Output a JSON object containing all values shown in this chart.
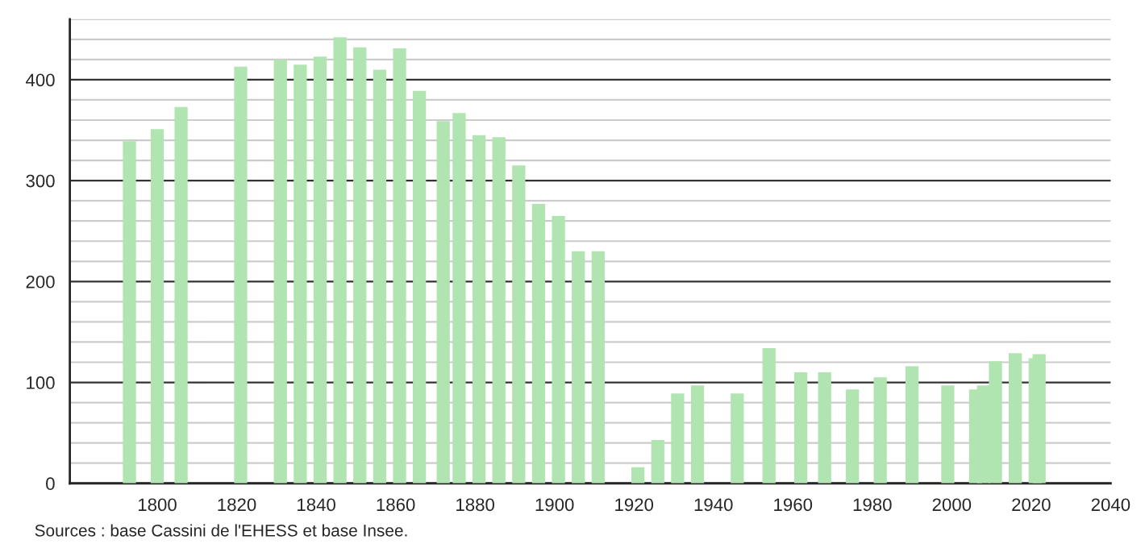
{
  "chart_data": {
    "type": "bar",
    "x": [
      1793,
      1800,
      1806,
      1821,
      1831,
      1836,
      1841,
      1846,
      1851,
      1856,
      1861,
      1866,
      1872,
      1876,
      1881,
      1886,
      1891,
      1896,
      1901,
      1906,
      1911,
      1921,
      1926,
      1931,
      1936,
      1946,
      1954,
      1962,
      1968,
      1975,
      1982,
      1990,
      1999,
      2006,
      2008,
      2011,
      2016,
      2021,
      2022
    ],
    "values": [
      339,
      351,
      373,
      413,
      420,
      415,
      423,
      442,
      432,
      410,
      431,
      389,
      359,
      367,
      345,
      343,
      315,
      277,
      265,
      230,
      230,
      16,
      43,
      89,
      97,
      89,
      134,
      110,
      110,
      93,
      105,
      116,
      97,
      93,
      97,
      121,
      129,
      124,
      128
    ],
    "color": "#b0e4b0",
    "xlim": [
      1778,
      2040
    ],
    "xticks": [
      1800,
      1820,
      1840,
      1860,
      1880,
      1900,
      1920,
      1940,
      1960,
      1980,
      2000,
      2020,
      2040
    ],
    "ylim": [
      0,
      460
    ],
    "yticks": [
      0,
      {
        "value": 20,
        "label": null
      },
      {
        "value": 40,
        "label": null
      },
      {
        "value": 60,
        "label": null
      },
      {
        "value": 80,
        "label": null
      },
      100,
      {
        "value": 120,
        "label": null
      },
      {
        "value": 140,
        "label": null
      },
      {
        "value": 160,
        "label": null
      },
      {
        "value": 180,
        "label": null
      },
      200,
      {
        "value": 220,
        "label": null
      },
      {
        "value": 240,
        "label": null
      },
      {
        "value": 260,
        "label": null
      },
      {
        "value": 280,
        "label": null
      },
      300,
      {
        "value": 320,
        "label": null
      },
      {
        "value": 340,
        "label": null
      },
      {
        "value": 360,
        "label": null
      },
      {
        "value": 380,
        "label": null
      },
      400,
      {
        "value": 420,
        "label": null
      },
      {
        "value": 440,
        "label": null
      },
      {
        "value": 460,
        "label": null
      }
    ],
    "grid": "y",
    "legend": false,
    "annotations": [
      "Sources : base Cassini de l'EHESS et base Insee."
    ]
  }
}
